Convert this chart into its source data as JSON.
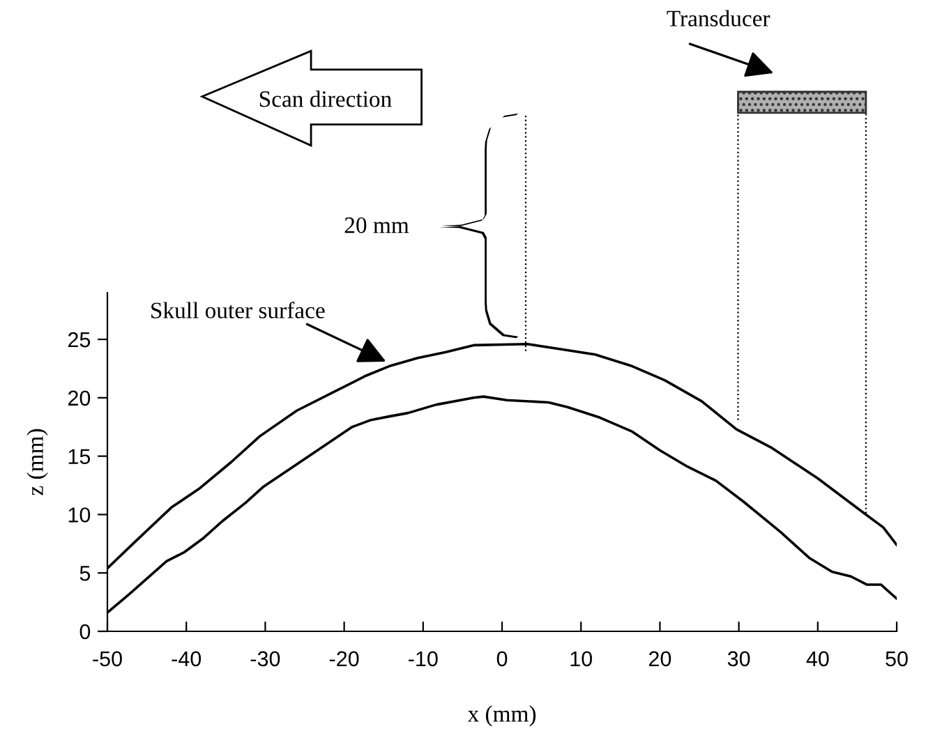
{
  "chart_data": {
    "type": "line",
    "xlabel": "x (mm)",
    "ylabel": "z (mm)",
    "xlim": [
      -50,
      50
    ],
    "ylim": [
      0,
      29
    ],
    "xticks": [
      -50,
      -40,
      -30,
      -20,
      -10,
      0,
      10,
      20,
      30,
      40,
      50
    ],
    "yticks": [
      0,
      5,
      10,
      15,
      20,
      25
    ],
    "ref_lines": [
      {
        "axis": "x",
        "value": 3,
        "line_style": "dotted"
      }
    ],
    "annotations": [
      {
        "text": "Skull outer surface",
        "x": -14.7,
        "y": 23.1
      },
      "Scan direction",
      "20 mm",
      "Transducer"
    ],
    "series": [
      {
        "color": "#000000",
        "x": [
          -50,
          -46.6,
          -41.9,
          -38.4,
          -34.3,
          -30.7,
          -26.0,
          -21.3,
          -17.2,
          -14.3,
          -10.7,
          -7.2,
          -3.6,
          3.2,
          7.1,
          11.8,
          16.5,
          20.6,
          25.3,
          29.7,
          34.2,
          40.0,
          45.9,
          48.3,
          50
        ],
        "values": [
          5.4,
          7.6,
          10.6,
          12.2,
          14.5,
          16.7,
          18.9,
          20.5,
          21.9,
          22.7,
          23.4,
          23.9,
          24.5,
          24.6,
          24.2,
          23.7,
          22.7,
          21.5,
          19.7,
          17.3,
          15.7,
          13.1,
          10.1,
          8.9,
          7.4
        ]
      },
      {
        "color": "#000000",
        "x": [
          -50,
          -47.2,
          -42.5,
          -40.2,
          -37.8,
          -35.5,
          -32.5,
          -30.2,
          -26.0,
          -22.5,
          -19.0,
          -16.6,
          -14.3,
          -11.9,
          -8.4,
          -3.6,
          -2.35,
          0.6,
          5.9,
          8.3,
          12.4,
          16.5,
          20.0,
          23.5,
          27.1,
          30.6,
          35.3,
          38.9,
          41.8,
          44.2,
          46.2,
          48.0,
          50
        ],
        "values": [
          1.6,
          3.2,
          6.0,
          6.8,
          8.0,
          9.4,
          11.0,
          12.4,
          14.3,
          15.9,
          17.5,
          18.1,
          18.4,
          18.7,
          19.4,
          20.0,
          20.1,
          19.8,
          19.6,
          19.2,
          18.3,
          17.1,
          15.5,
          14.1,
          12.9,
          11.1,
          8.5,
          6.3,
          5.1,
          4.7,
          4.0,
          4.0,
          2.8
        ]
      }
    ]
  }
}
